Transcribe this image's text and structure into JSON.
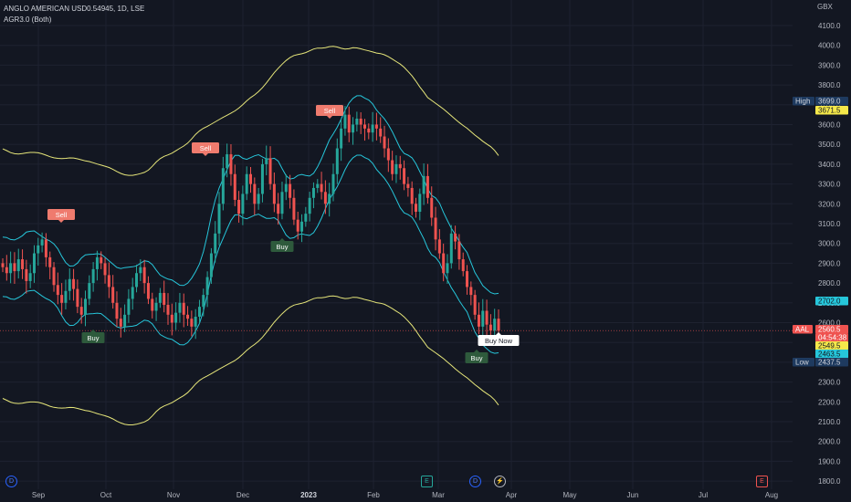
{
  "legend": {
    "symbol": "ANGLO AMERICAN USD0.54945, 1D, LSE",
    "indicator": "AGR3.0 (Both)"
  },
  "currency": "GBX",
  "colors": {
    "background": "#131722",
    "up": "#26a69a",
    "down": "#ef5350",
    "band_inner": "#26c6da",
    "band_outer": "#e6e67a",
    "sell_signal": "#ef7b6e",
    "buy_signal": "#2e5a3c",
    "grid": "#1e2230",
    "axis_text": "#b2b5be"
  },
  "price_labels": {
    "high_label": "High",
    "high_value": "3699.0",
    "yellow1": "3671.5",
    "cyan1": "2702.0",
    "last_ticker": "AAL",
    "last_value": "2560.5",
    "countdown": "04:54:38",
    "yellow2": "2549.5",
    "cyan2": "2463.5",
    "low_label": "Low",
    "low_value": "2437.5"
  },
  "signals": {
    "sell": "Sell",
    "buy": "Buy",
    "buy_now": "Buy Now"
  },
  "events": {
    "d": "D",
    "e": "E",
    "bolt": "⚡"
  },
  "chart_data": {
    "type": "candlestick",
    "y_axis": {
      "ticks": [
        "4100.0",
        "4000.0",
        "3900.0",
        "3800.0",
        "3700.0",
        "3600.0",
        "3500.0",
        "3400.0",
        "3300.0",
        "3200.0",
        "3100.0",
        "3000.0",
        "2900.0",
        "2800.0",
        "2700.0",
        "2600.0",
        "2500.0",
        "2400.0",
        "2300.0",
        "2200.0",
        "2100.0",
        "2000.0",
        "1900.0",
        "1800.0"
      ],
      "range": [
        1790,
        4150
      ]
    },
    "x_axis": {
      "ticks": [
        "Sep",
        "Oct",
        "Nov",
        "Dec",
        "2023",
        "Feb",
        "Mar",
        "Apr",
        "May",
        "Jun",
        "Jul",
        "Aug"
      ]
    },
    "closes": [
      2880,
      2850,
      2900,
      2860,
      2920,
      2870,
      2810,
      2850,
      2950,
      2990,
      3020,
      2930,
      2880,
      2790,
      2740,
      2700,
      2760,
      2820,
      2770,
      2680,
      2640,
      2720,
      2800,
      2870,
      2930,
      2900,
      2840,
      2780,
      2700,
      2620,
      2580,
      2640,
      2720,
      2780,
      2850,
      2880,
      2800,
      2720,
      2660,
      2700,
      2750,
      2690,
      2640,
      2600,
      2650,
      2700,
      2640,
      2620,
      2580,
      2630,
      2680,
      2740,
      2830,
      2950,
      3050,
      3200,
      3380,
      3450,
      3350,
      3220,
      3150,
      3250,
      3350,
      3300,
      3200,
      3250,
      3400,
      3430,
      3300,
      3200,
      3150,
      3260,
      3300,
      3230,
      3120,
      3060,
      3110,
      3150,
      3230,
      3280,
      3300,
      3260,
      3200,
      3250,
      3350,
      3480,
      3580,
      3650,
      3560,
      3600,
      3630,
      3600,
      3580,
      3560,
      3600,
      3580,
      3540,
      3480,
      3420,
      3350,
      3400,
      3380,
      3300,
      3280,
      3200,
      3160,
      3250,
      3340,
      3230,
      3130,
      3020,
      2950,
      2850,
      2900,
      3050,
      3010,
      2920,
      2860,
      2780,
      2740,
      2640,
      2580,
      2660,
      2590,
      2560,
      2620,
      2560
    ]
  }
}
